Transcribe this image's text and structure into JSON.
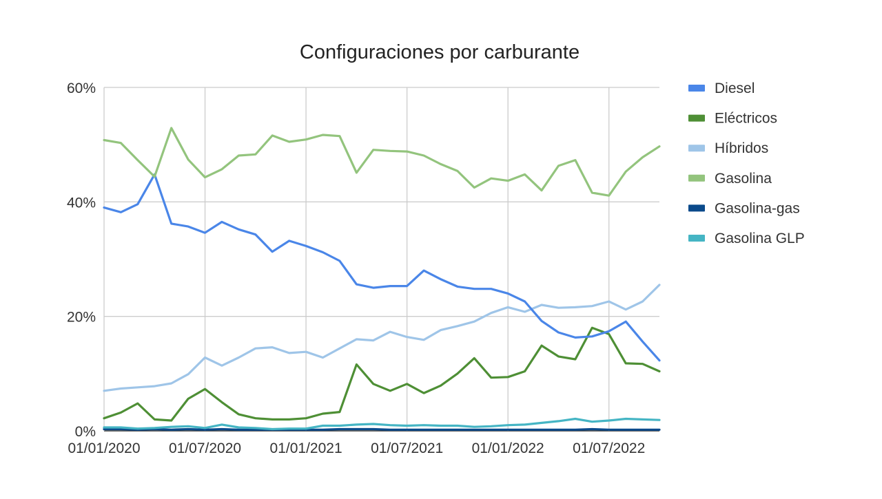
{
  "chart_data": {
    "type": "line",
    "title": "Configuraciones por carburante",
    "x_ticks": [
      "01/01/2020",
      "01/07/2020",
      "01/01/2021",
      "01/07/2021",
      "01/01/2022",
      "01/07/2022"
    ],
    "x": [
      "01/01/2020",
      "01/02/2020",
      "01/03/2020",
      "01/04/2020",
      "01/05/2020",
      "01/06/2020",
      "01/07/2020",
      "01/08/2020",
      "01/09/2020",
      "01/10/2020",
      "01/11/2020",
      "01/12/2020",
      "01/01/2021",
      "01/02/2021",
      "01/03/2021",
      "01/04/2021",
      "01/05/2021",
      "01/06/2021",
      "01/07/2021",
      "01/08/2021",
      "01/09/2021",
      "01/10/2021",
      "01/11/2021",
      "01/12/2021",
      "01/01/2022",
      "01/02/2022",
      "01/03/2022",
      "01/04/2022",
      "01/05/2022",
      "01/06/2022",
      "01/07/2022",
      "01/08/2022",
      "01/09/2022",
      "01/10/2022"
    ],
    "y_ticks": [
      "0%",
      "20%",
      "40%",
      "60%"
    ],
    "ylim": [
      0,
      60
    ],
    "y_unit": "%",
    "grid": true,
    "legend_position": "right",
    "series": [
      {
        "name": "Diesel",
        "color": "#4a86e8",
        "values": [
          39.0,
          38.2,
          39.6,
          44.8,
          36.2,
          35.7,
          34.6,
          36.5,
          35.2,
          34.3,
          31.3,
          33.2,
          32.3,
          31.2,
          29.7,
          25.6,
          25.0,
          25.3,
          25.3,
          28.0,
          26.5,
          25.2,
          24.8,
          24.8,
          24.0,
          22.6,
          19.2,
          17.2,
          16.3,
          16.5,
          17.4,
          19.1,
          15.6,
          12.3
        ]
      },
      {
        "name": "Eléctricos",
        "color": "#4e8f35",
        "values": [
          2.2,
          3.2,
          4.8,
          2.0,
          1.8,
          5.6,
          7.3,
          5.0,
          2.9,
          2.2,
          2.0,
          2.0,
          2.2,
          3.0,
          3.3,
          11.6,
          8.2,
          7.0,
          8.2,
          6.6,
          7.9,
          10.0,
          12.7,
          9.3,
          9.4,
          10.4,
          14.9,
          13.0,
          12.5,
          18.0,
          16.9,
          11.8,
          11.7,
          10.4
        ]
      },
      {
        "name": "Híbridos",
        "color": "#9fc5e8",
        "values": [
          7.0,
          7.4,
          7.6,
          7.8,
          8.3,
          9.9,
          12.8,
          11.4,
          12.8,
          14.4,
          14.6,
          13.6,
          13.8,
          12.8,
          14.4,
          16.0,
          15.8,
          17.3,
          16.4,
          15.9,
          17.6,
          18.3,
          19.1,
          20.6,
          21.6,
          20.8,
          22.0,
          21.5,
          21.6,
          21.8,
          22.6,
          21.2,
          22.6,
          25.5
        ]
      },
      {
        "name": "Gasolina",
        "color": "#93c47d",
        "values": [
          50.8,
          50.3,
          47.3,
          44.4,
          52.9,
          47.4,
          44.3,
          45.7,
          48.1,
          48.3,
          51.6,
          50.5,
          50.9,
          51.7,
          51.5,
          45.1,
          49.1,
          48.9,
          48.8,
          48.1,
          46.6,
          45.4,
          42.5,
          44.1,
          43.7,
          44.8,
          42.0,
          46.3,
          47.3,
          41.6,
          41.1,
          45.3,
          47.8,
          49.7
        ]
      },
      {
        "name": "Gasolina-gas",
        "color": "#0b4a8b",
        "values": [
          0.3,
          0.3,
          0.2,
          0.3,
          0.2,
          0.3,
          0.2,
          0.3,
          0.2,
          0.2,
          0.2,
          0.2,
          0.2,
          0.2,
          0.3,
          0.3,
          0.3,
          0.2,
          0.2,
          0.2,
          0.2,
          0.2,
          0.2,
          0.2,
          0.2,
          0.2,
          0.2,
          0.2,
          0.2,
          0.3,
          0.2,
          0.2,
          0.2,
          0.2
        ]
      },
      {
        "name": "Gasolina GLP",
        "color": "#45b5c4",
        "values": [
          0.6,
          0.6,
          0.4,
          0.5,
          0.7,
          0.8,
          0.5,
          1.1,
          0.6,
          0.5,
          0.3,
          0.4,
          0.4,
          0.9,
          0.9,
          1.1,
          1.2,
          1.0,
          0.9,
          1.0,
          0.9,
          0.9,
          0.7,
          0.8,
          1.0,
          1.1,
          1.4,
          1.7,
          2.1,
          1.6,
          1.8,
          2.1,
          2.0,
          1.9
        ]
      }
    ]
  }
}
